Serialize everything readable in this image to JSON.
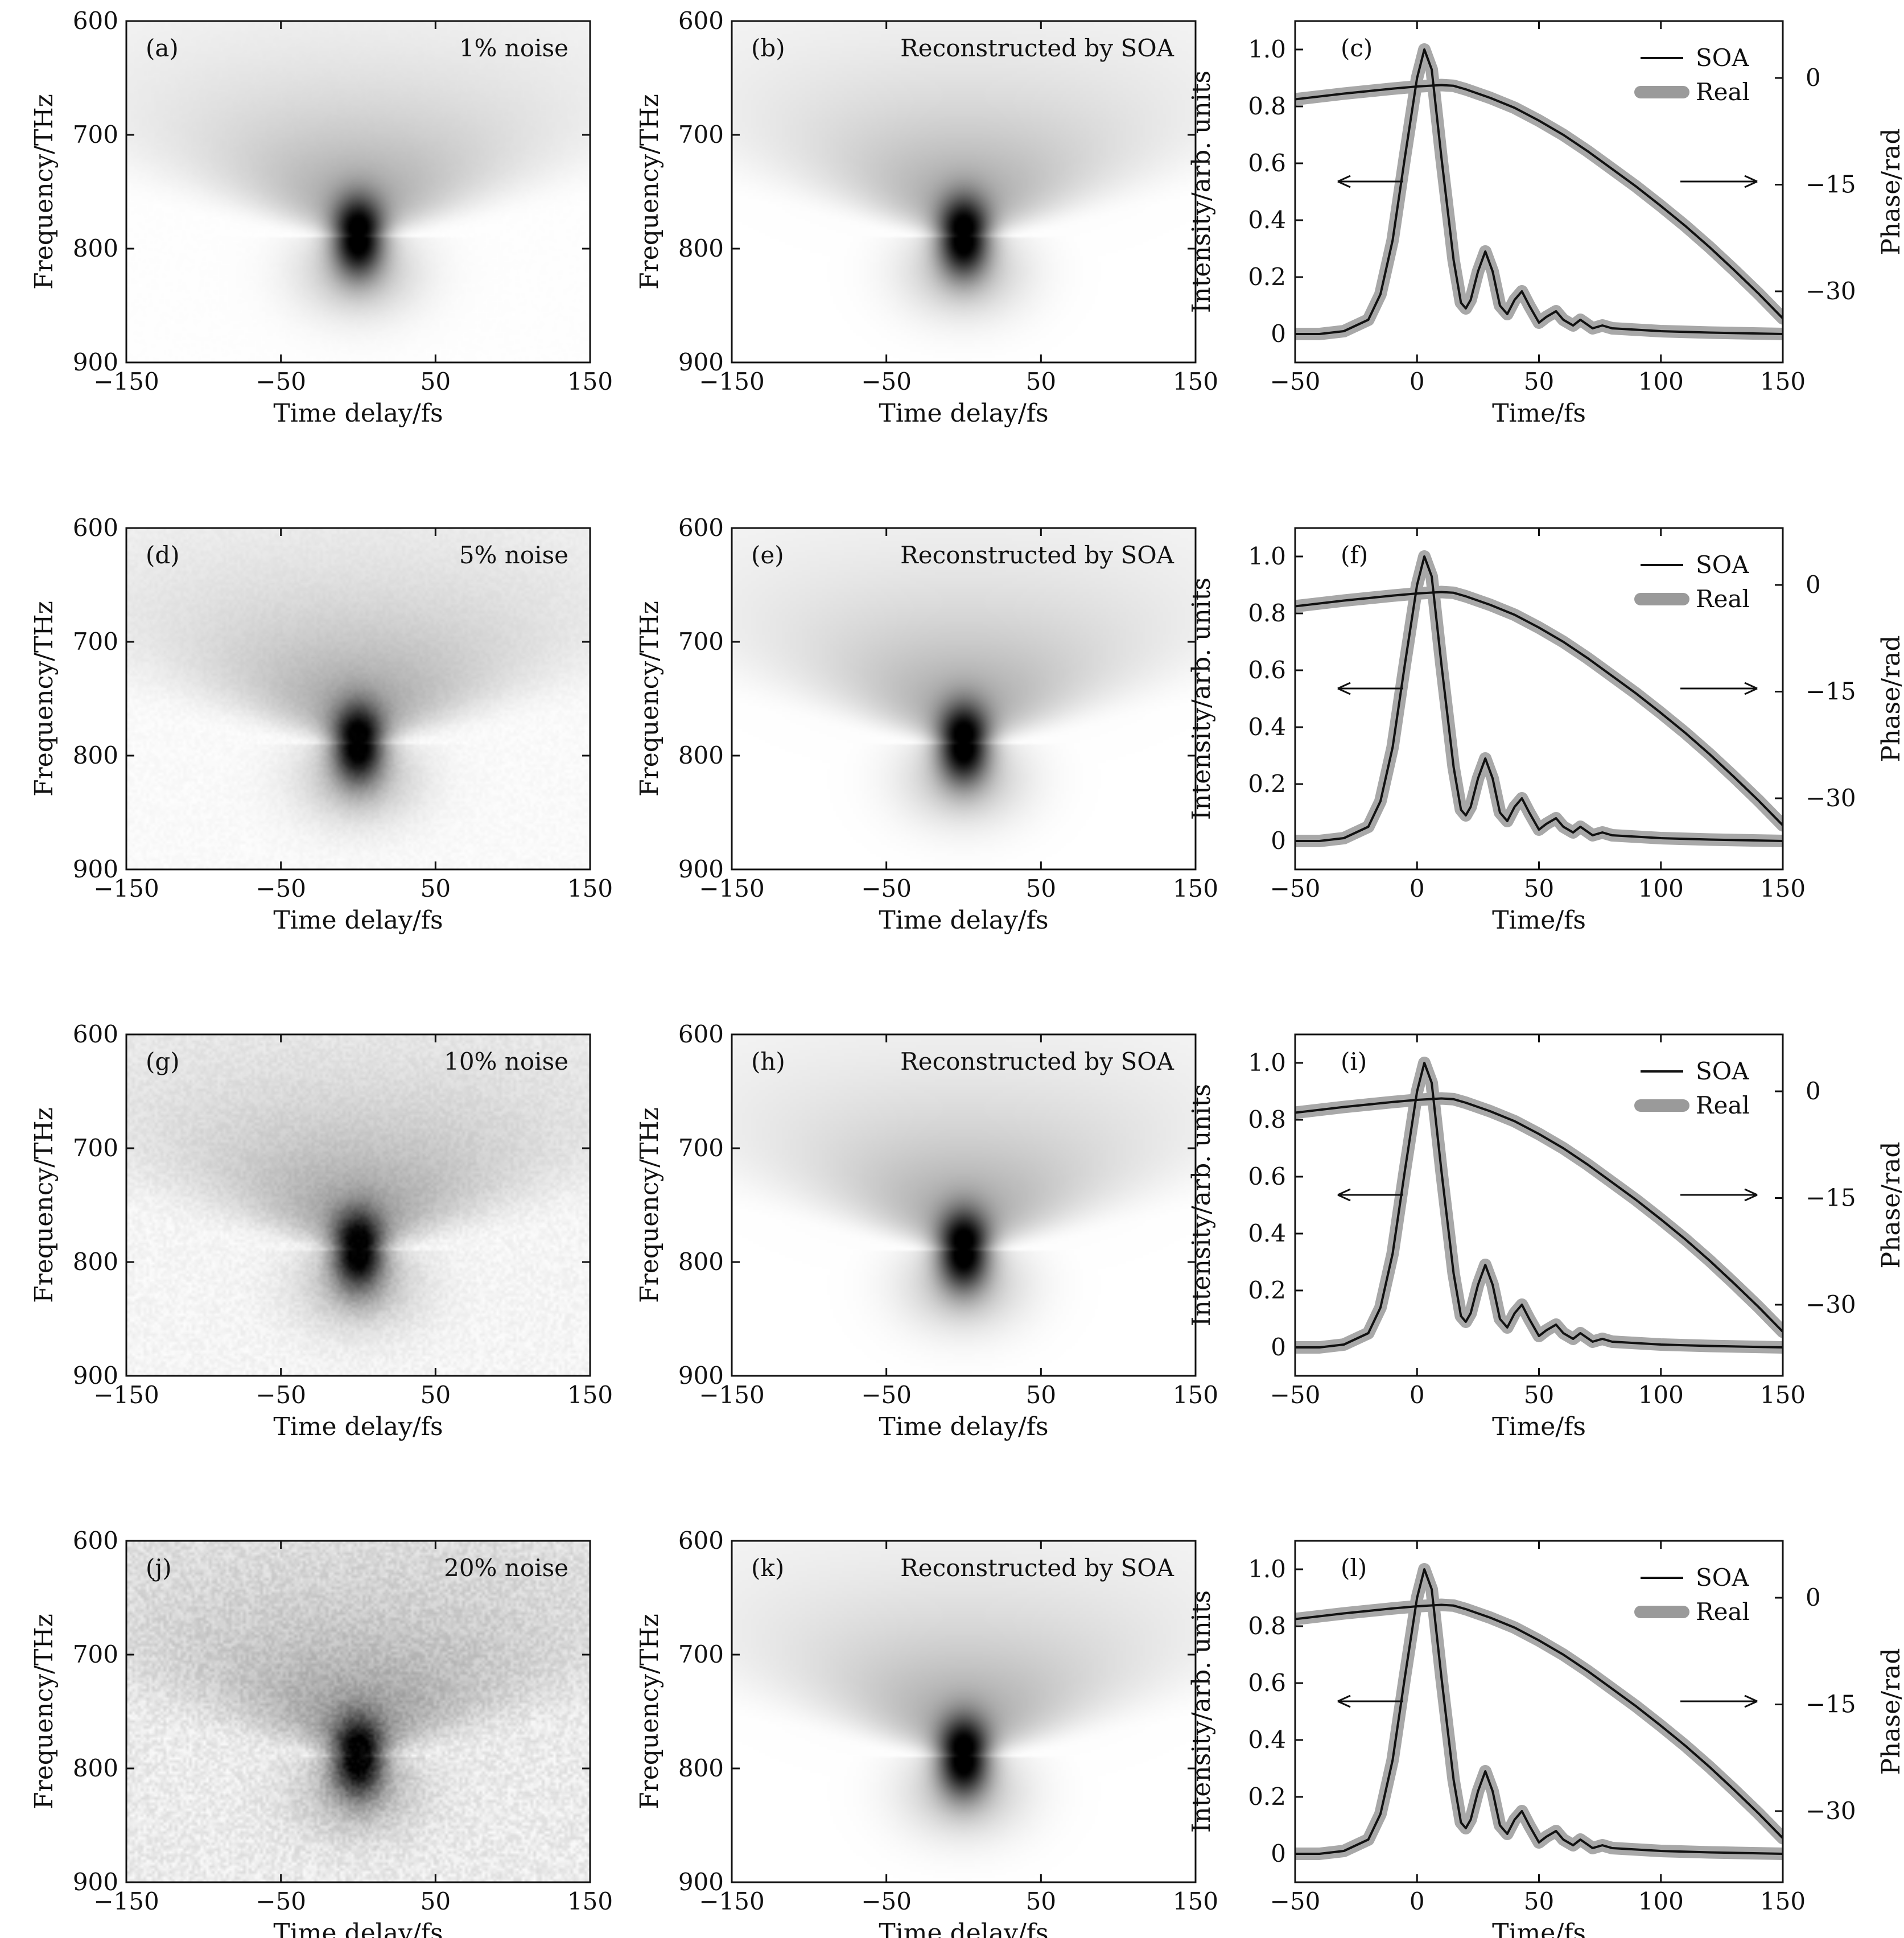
{
  "figure": {
    "rows": [
      {
        "maps": [
          {
            "id": "a",
            "panel_label": "(a)",
            "annotation": "1% noise",
            "kind": "measured",
            "noise_level": 0.01
          },
          {
            "id": "b",
            "panel_label": "(b)",
            "annotation": "Reconstructed by SOA",
            "kind": "reconstructed",
            "noise_level": 0
          }
        ],
        "pulse": {
          "id": "c",
          "panel_label": "(c)"
        }
      },
      {
        "maps": [
          {
            "id": "d",
            "panel_label": "(d)",
            "annotation": "5% noise",
            "kind": "measured",
            "noise_level": 0.05
          },
          {
            "id": "e",
            "panel_label": "(e)",
            "annotation": "Reconstructed by SOA",
            "kind": "reconstructed",
            "noise_level": 0
          }
        ],
        "pulse": {
          "id": "f",
          "panel_label": "(f)"
        }
      },
      {
        "maps": [
          {
            "id": "g",
            "panel_label": "(g)",
            "annotation": "10% noise",
            "kind": "measured",
            "noise_level": 0.1
          },
          {
            "id": "h",
            "panel_label": "(h)",
            "annotation": "Reconstructed by SOA",
            "kind": "reconstructed",
            "noise_level": 0
          }
        ],
        "pulse": {
          "id": "i",
          "panel_label": "(i)"
        }
      },
      {
        "maps": [
          {
            "id": "j",
            "panel_label": "(j)",
            "annotation": "20% noise",
            "kind": "measured",
            "noise_level": 0.2
          },
          {
            "id": "k",
            "panel_label": "(k)",
            "annotation": "Reconstructed by SOA",
            "kind": "reconstructed",
            "noise_level": 0
          }
        ],
        "pulse": {
          "id": "l",
          "panel_label": "(l)"
        }
      }
    ]
  },
  "chart_data": [
    {
      "type": "heatmap",
      "name": "spectrogram",
      "xlabel": "Time delay/fs",
      "ylabel": "Frequency/THz",
      "xlim": [
        -150,
        150
      ],
      "ylim": [
        600,
        900
      ],
      "y_inverted": true,
      "xticks": [
        -150,
        -50,
        50,
        150
      ],
      "xtick_labels": [
        "−150",
        "−50",
        "50",
        "150"
      ],
      "yticks": [
        600,
        700,
        800,
        900
      ],
      "ytick_labels": [
        "600",
        "700",
        "800",
        "900"
      ],
      "peak": {
        "x": 0,
        "y": 790
      },
      "colormap": "grayscale (white = 0, black = max)"
    },
    {
      "type": "line",
      "name": "temporal pulse",
      "xlabel": "Time/fs",
      "ylabel": "Intensity/arb. units",
      "y2label": "Phase/rad",
      "xlim": [
        -50,
        150
      ],
      "ylim": [
        -0.1,
        1.1
      ],
      "y2lim": [
        -40,
        8
      ],
      "xticks": [
        -50,
        0,
        50,
        100,
        150
      ],
      "xtick_labels": [
        "−50",
        "0",
        "50",
        "100",
        "150"
      ],
      "yticks": [
        0,
        0.2,
        0.4,
        0.6,
        0.8,
        1.0
      ],
      "ytick_labels": [
        "0",
        "0.2",
        "0.4",
        "0.6",
        "0.8",
        "1.0"
      ],
      "y2ticks": [
        0,
        -15,
        -30
      ],
      "y2tick_labels": [
        "0",
        "−15",
        "−30"
      ],
      "legend": [
        {
          "label": "SOA",
          "style": "thin dark line",
          "color": "#111111"
        },
        {
          "label": "Real",
          "style": "thick gray line",
          "color": "#9a9a9a"
        }
      ],
      "legend_position": "top-right",
      "arrows": [
        {
          "direction": "left",
          "meaning": "intensity curve uses left axis"
        },
        {
          "direction": "right",
          "meaning": "phase curve uses right axis"
        }
      ],
      "series": [
        {
          "name": "Intensity",
          "axis": "left",
          "x": [
            -50,
            -40,
            -30,
            -20,
            -15,
            -10,
            -5,
            0,
            3,
            6,
            10,
            15,
            18,
            20,
            22,
            25,
            28,
            31,
            34,
            37,
            40,
            43,
            46,
            50,
            53,
            57,
            60,
            64,
            67,
            72,
            76,
            80,
            90,
            100,
            120,
            150
          ],
          "y": [
            0.0,
            0.0,
            0.01,
            0.05,
            0.14,
            0.33,
            0.62,
            0.9,
            1.0,
            0.93,
            0.62,
            0.26,
            0.11,
            0.09,
            0.12,
            0.22,
            0.29,
            0.22,
            0.1,
            0.07,
            0.12,
            0.15,
            0.1,
            0.04,
            0.06,
            0.08,
            0.05,
            0.03,
            0.05,
            0.02,
            0.03,
            0.02,
            0.015,
            0.01,
            0.005,
            0.0
          ]
        },
        {
          "name": "Phase",
          "axis": "right",
          "x": [
            -50,
            -30,
            -10,
            0,
            10,
            15,
            20,
            30,
            40,
            50,
            60,
            70,
            80,
            90,
            100,
            110,
            120,
            130,
            140,
            150
          ],
          "y": [
            -3.0,
            -2.2,
            -1.5,
            -1.2,
            -1.0,
            -1.1,
            -1.6,
            -2.8,
            -4.2,
            -6.0,
            -8.0,
            -10.3,
            -12.8,
            -15.3,
            -18.0,
            -20.8,
            -23.8,
            -27.0,
            -30.3,
            -33.8
          ]
        }
      ]
    }
  ]
}
